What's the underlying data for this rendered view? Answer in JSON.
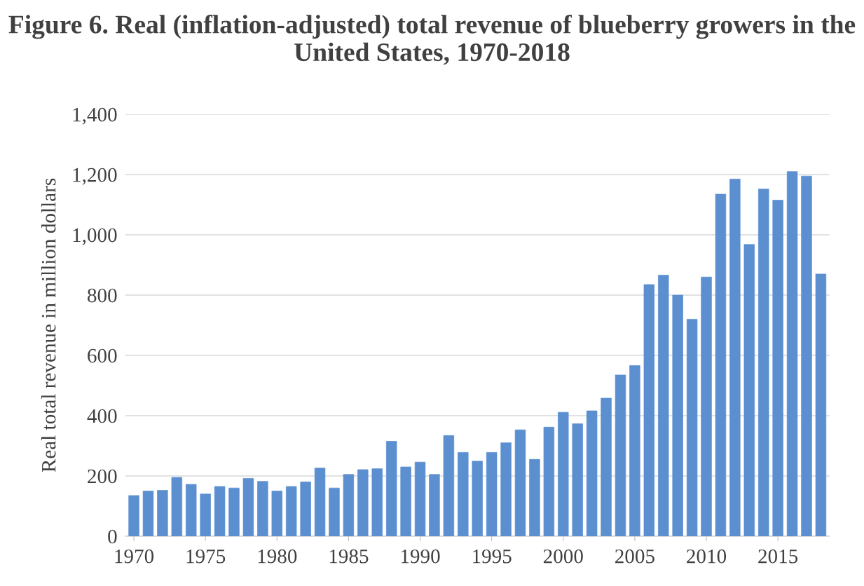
{
  "chart_data": {
    "type": "bar",
    "title": "Figure 6. Real (inflation-adjusted) total revenue of blueberry growers in the United States, 1970-2018",
    "ylabel": "Real total revenue in million dollars",
    "x": [
      1970,
      1971,
      1972,
      1973,
      1974,
      1975,
      1976,
      1977,
      1978,
      1979,
      1980,
      1981,
      1982,
      1983,
      1984,
      1985,
      1986,
      1987,
      1988,
      1989,
      1990,
      1991,
      1992,
      1993,
      1994,
      1995,
      1996,
      1997,
      1998,
      1999,
      2000,
      2001,
      2002,
      2003,
      2004,
      2005,
      2006,
      2007,
      2008,
      2009,
      2010,
      2011,
      2012,
      2013,
      2014,
      2015,
      2016,
      2017,
      2018
    ],
    "values": [
      135,
      150,
      152,
      195,
      172,
      140,
      165,
      160,
      192,
      182,
      150,
      165,
      180,
      226,
      160,
      205,
      221,
      224,
      315,
      230,
      246,
      205,
      334,
      278,
      249,
      278,
      310,
      353,
      255,
      362,
      411,
      373,
      416,
      458,
      535,
      566,
      835,
      866,
      800,
      720,
      860,
      1135,
      1185,
      968,
      1152,
      1115,
      1210,
      1195,
      870
    ],
    "color": "#5b8fd0",
    "xlim": [
      1969.4,
      2018.6
    ],
    "xticks": [
      1970,
      1975,
      1980,
      1985,
      1990,
      1995,
      2000,
      2005,
      2010,
      2015
    ],
    "ylim": [
      0,
      1400
    ],
    "yticks": [
      {
        "value": 0,
        "label": "0"
      },
      {
        "value": 200,
        "label": "200"
      },
      {
        "value": 400,
        "label": "400"
      },
      {
        "value": 600,
        "label": "600"
      },
      {
        "value": 800,
        "label": "800"
      },
      {
        "value": 1000,
        "label": "1,000"
      },
      {
        "value": 1200,
        "label": "1,200"
      },
      {
        "value": 1400,
        "label": "1,400"
      }
    ],
    "grid": "y",
    "legend": false
  }
}
